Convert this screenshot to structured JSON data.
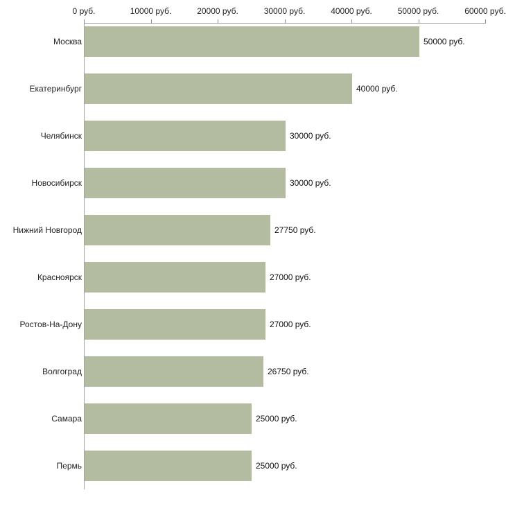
{
  "chart_data": {
    "type": "bar",
    "orientation": "horizontal",
    "title": "",
    "xlabel": "",
    "ylabel": "",
    "categories": [
      "Москва",
      "Екатеринбург",
      "Челябинск",
      "Новосибирск",
      "Нижний Новгород",
      "Красноярск",
      "Ростов-На-Дону",
      "Волгоград",
      "Самара",
      "Пермь"
    ],
    "values": [
      50000,
      40000,
      30000,
      30000,
      27750,
      27000,
      27000,
      26750,
      25000,
      25000
    ],
    "value_labels": [
      "50000 руб.",
      "40000 руб.",
      "30000 руб.",
      "30000 руб.",
      "27750 руб.",
      "27000 руб.",
      "27000 руб.",
      "26750 руб.",
      "25000 руб.",
      "25000 руб."
    ],
    "x_ticks": [
      {
        "value": 0,
        "label": "0 руб."
      },
      {
        "value": 10000,
        "label": "10000 руб."
      },
      {
        "value": 20000,
        "label": "20000 руб."
      },
      {
        "value": 30000,
        "label": "30000 руб."
      },
      {
        "value": 40000,
        "label": "40000 руб."
      },
      {
        "value": 50000,
        "label": "50000 руб."
      },
      {
        "value": 60000,
        "label": "60000 руб."
      }
    ],
    "xlim": [
      0,
      60000
    ],
    "grid": false,
    "legend": false,
    "colors": {
      "bar_fill": "#b3bba1",
      "axis_line": "#a3a3a3",
      "tick_mark": "#8c8c8c",
      "text": "#222222",
      "background": "#ffffff"
    }
  }
}
